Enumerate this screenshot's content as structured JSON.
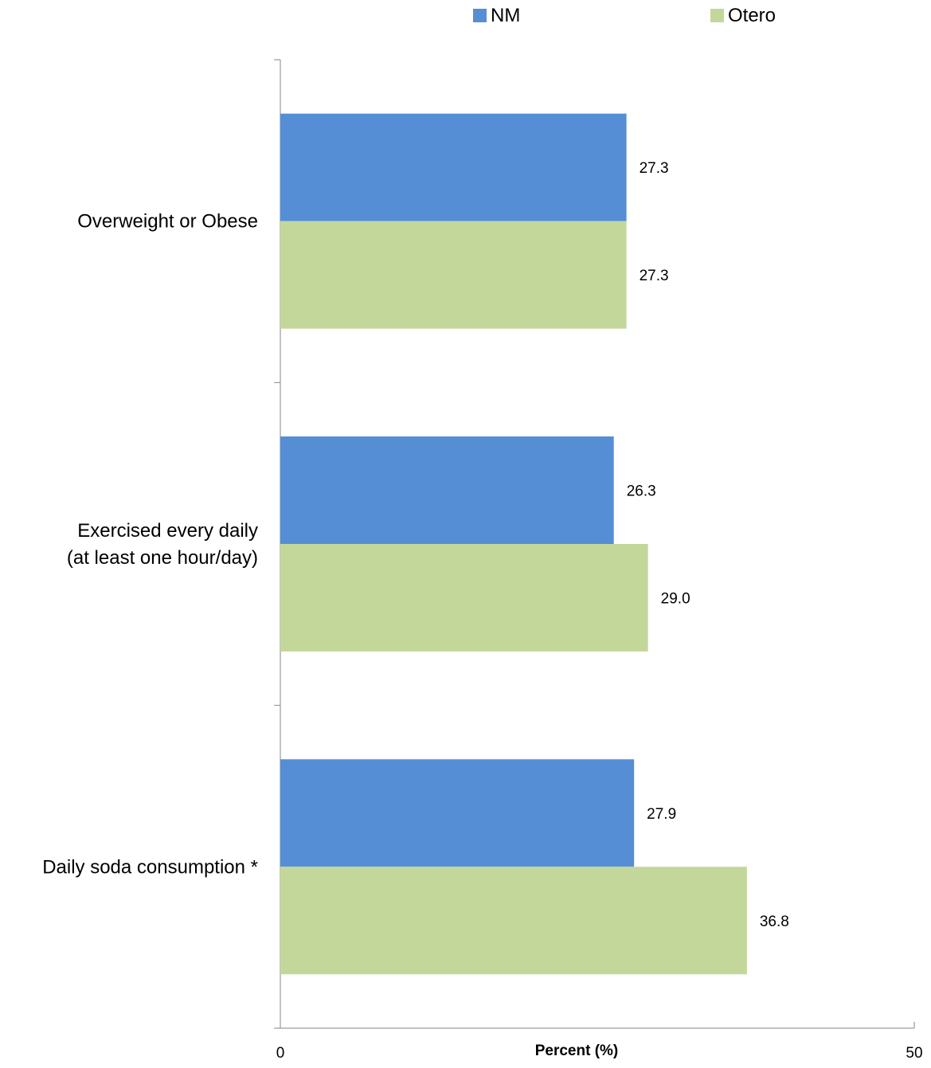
{
  "chart_data": {
    "type": "bar",
    "orientation": "horizontal",
    "categories": [
      [
        "Overweight or Obese"
      ],
      [
        "Exercised every daily",
        "(at least one hour/day)"
      ],
      [
        "Daily soda consumption *"
      ]
    ],
    "series": [
      {
        "name": "NM",
        "color": "#558ED5",
        "values": [
          27.3,
          26.3,
          27.9
        ],
        "labels": [
          "27.3",
          "26.3",
          "27.9"
        ]
      },
      {
        "name": "Otero",
        "color": "#C4D79B",
        "values": [
          27.3,
          29.0,
          36.8
        ],
        "labels": [
          "27.3",
          "29.0",
          "36.8"
        ]
      }
    ],
    "xlabel": "Percent (%)",
    "xlim": [
      0,
      50
    ],
    "xticks": [
      "0",
      "50"
    ],
    "grid": false,
    "legend_position": "top"
  }
}
